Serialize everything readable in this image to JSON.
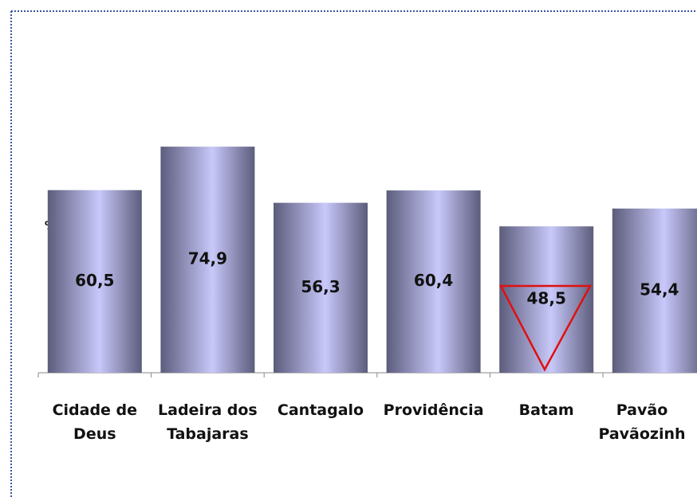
{
  "chart_data": {
    "type": "bar",
    "ylabel": "%",
    "categories": [
      "Cidade de Deus",
      "Ladeira dos Tabajaras",
      "Cantagalo",
      "Providência",
      "Batam",
      "Pavão Pavãozinh"
    ],
    "values": [
      60.5,
      74.9,
      56.3,
      60.4,
      48.5,
      54.4
    ],
    "value_labels": [
      "60,5",
      "74,9",
      "56,3",
      "60,4",
      "48,5",
      "54,4"
    ],
    "ylim": [
      0,
      100
    ]
  }
}
